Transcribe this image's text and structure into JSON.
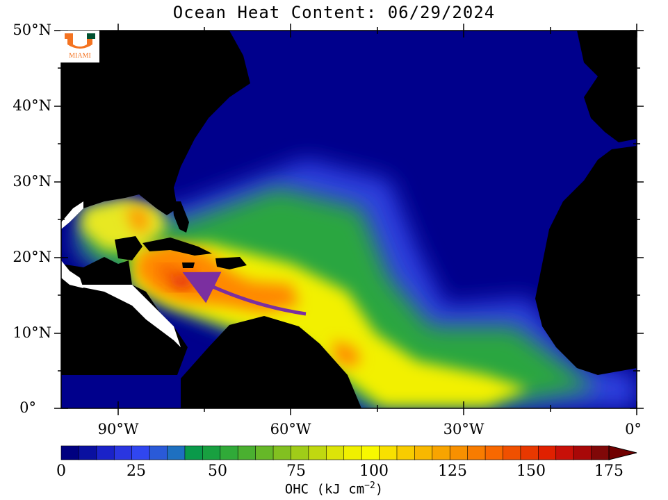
{
  "title": "Ocean Heat Content: 06/29/2024",
  "lat_labels": [
    "50°N",
    "40°N",
    "30°N",
    "20°N",
    "10°N",
    "0°"
  ],
  "lon_labels": [
    "90°W",
    "60°W",
    "30°W",
    "0°"
  ],
  "colorbar": {
    "ticks": [
      "0",
      "25",
      "50",
      "75",
      "100",
      "125",
      "150",
      "175"
    ],
    "label": "OHC (kJ cm",
    "label_exp": "−2",
    "label_close": ")",
    "min": 0,
    "max": 175,
    "step": 5
  },
  "logo": {
    "text": "MIAMI",
    "color": "#f47321",
    "accent": "#005030"
  },
  "colors": {
    "ocean_low": "#000080",
    "land": "#000000",
    "arrow": "#7b2fa0"
  }
}
